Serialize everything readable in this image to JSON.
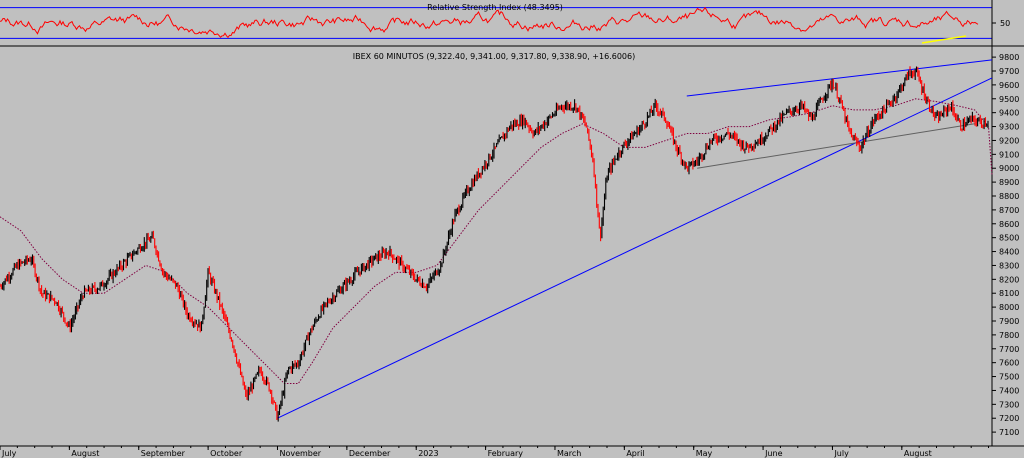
{
  "colors": {
    "background": "#c0c0c0",
    "rsi_line": "#ff0000",
    "rsi_bands": "#0000ff",
    "price_candle_up": "#000000",
    "price_candle_down": "#ff0000",
    "moving_average": "#800040",
    "trendline_primary": "#0000ff",
    "trendline_secondary": "#606060",
    "rsi_divergence": "#ffff00"
  },
  "chart_data": [
    {
      "type": "line",
      "title": "Relative Strength Index (48.3495)",
      "indicator": "RSI",
      "current_value": 48.3495,
      "ylim": [
        20,
        80
      ],
      "bands": [
        30,
        70
      ],
      "yticks": [
        50
      ],
      "ytick_labels": [
        "50"
      ]
    },
    {
      "type": "line",
      "title": "IBEX 60 MINUTOS (9,322.40, 9,341.00, 9,317.80, 9,338.90, +16.6006)",
      "instrument": "IBEX 60 MINUTOS",
      "last_bar": {
        "open": 9322.4,
        "high": 9341.0,
        "low": 9317.8,
        "close": 9338.9,
        "change": 16.6006
      },
      "ylim": [
        7000,
        9880
      ],
      "yticks": [
        7100,
        7200,
        7300,
        7400,
        7500,
        7600,
        7700,
        7800,
        7900,
        8000,
        8100,
        8200,
        8300,
        8400,
        8500,
        8600,
        8700,
        8800,
        8900,
        9000,
        9100,
        9200,
        9300,
        9400,
        9500,
        9600,
        9700,
        9800
      ],
      "ytick_labels": [
        "7100",
        "7200",
        "7300",
        "7400",
        "7500",
        "7600",
        "7700",
        "7800",
        "7900",
        "8000",
        "8100",
        "8200",
        "8300",
        "8400",
        "8500",
        "8600",
        "8700",
        "8800",
        "8900",
        "9000",
        "9100",
        "9200",
        "9300",
        "9400",
        "9500",
        "9600",
        "9700",
        "9800"
      ],
      "x_labels": [
        "July",
        "August",
        "September",
        "October",
        "November",
        "December",
        "2023",
        "February",
        "March",
        "April",
        "May",
        "June",
        "July",
        "August"
      ],
      "x_label_pos": [
        0.5,
        1.5,
        2.5,
        3.5,
        4.5,
        5.5,
        6.5,
        7.5,
        8.5,
        9.5,
        10.5,
        11.5,
        12.5,
        13.5
      ],
      "xlim": [
        0,
        14.3
      ],
      "price_path": [
        [
          0.0,
          8150
        ],
        [
          0.25,
          8300
        ],
        [
          0.45,
          8350
        ],
        [
          0.6,
          8100
        ],
        [
          0.8,
          8050
        ],
        [
          1.0,
          7850
        ],
        [
          1.2,
          8100
        ],
        [
          1.45,
          8150
        ],
        [
          1.65,
          8250
        ],
        [
          1.85,
          8350
        ],
        [
          2.05,
          8450
        ],
        [
          2.2,
          8500
        ],
        [
          2.35,
          8250
        ],
        [
          2.55,
          8150
        ],
        [
          2.7,
          7950
        ],
        [
          2.9,
          7850
        ],
        [
          3.0,
          8250
        ],
        [
          3.15,
          8050
        ],
        [
          3.35,
          7750
        ],
        [
          3.55,
          7350
        ],
        [
          3.75,
          7550
        ],
        [
          3.9,
          7400
        ],
        [
          4.0,
          7200
        ],
        [
          4.15,
          7550
        ],
        [
          4.3,
          7600
        ],
        [
          4.45,
          7800
        ],
        [
          4.6,
          7950
        ],
        [
          4.75,
          8050
        ],
        [
          4.95,
          8150
        ],
        [
          5.15,
          8250
        ],
        [
          5.4,
          8350
        ],
        [
          5.6,
          8400
        ],
        [
          5.8,
          8300
        ],
        [
          6.0,
          8200
        ],
        [
          6.15,
          8150
        ],
        [
          6.35,
          8300
        ],
        [
          6.55,
          8650
        ],
        [
          6.75,
          8850
        ],
        [
          6.95,
          9000
        ],
        [
          7.15,
          9150
        ],
        [
          7.35,
          9300
        ],
        [
          7.55,
          9350
        ],
        [
          7.7,
          9250
        ],
        [
          7.9,
          9350
        ],
        [
          8.1,
          9450
        ],
        [
          8.3,
          9450
        ],
        [
          8.45,
          9300
        ],
        [
          8.55,
          9050
        ],
        [
          8.65,
          8500
        ],
        [
          8.75,
          8950
        ],
        [
          8.9,
          9100
        ],
        [
          9.05,
          9200
        ],
        [
          9.25,
          9300
        ],
        [
          9.45,
          9450
        ],
        [
          9.6,
          9350
        ],
        [
          9.75,
          9150
        ],
        [
          9.9,
          9000
        ],
        [
          10.05,
          9050
        ],
        [
          10.25,
          9200
        ],
        [
          10.5,
          9250
        ],
        [
          10.75,
          9150
        ],
        [
          10.95,
          9200
        ],
        [
          11.15,
          9300
        ],
        [
          11.35,
          9400
        ],
        [
          11.55,
          9450
        ],
        [
          11.7,
          9350
        ],
        [
          11.85,
          9500
        ],
        [
          12.0,
          9620
        ],
        [
          12.1,
          9500
        ],
        [
          12.25,
          9250
        ],
        [
          12.4,
          9150
        ],
        [
          12.6,
          9350
        ],
        [
          12.8,
          9450
        ],
        [
          12.95,
          9550
        ],
        [
          13.1,
          9680
        ],
        [
          13.2,
          9700
        ],
        [
          13.35,
          9500
        ],
        [
          13.5,
          9350
        ],
        [
          13.7,
          9450
        ],
        [
          13.85,
          9300
        ],
        [
          14.0,
          9350
        ],
        [
          14.15,
          9330
        ],
        [
          14.25,
          9338.9
        ]
      ],
      "moving_average_path": [
        [
          0.0,
          8650
        ],
        [
          0.3,
          8550
        ],
        [
          0.6,
          8350
        ],
        [
          0.9,
          8200
        ],
        [
          1.2,
          8100
        ],
        [
          1.5,
          8100
        ],
        [
          1.8,
          8200
        ],
        [
          2.1,
          8300
        ],
        [
          2.4,
          8250
        ],
        [
          2.7,
          8100
        ],
        [
          3.0,
          8000
        ],
        [
          3.3,
          7850
        ],
        [
          3.6,
          7700
        ],
        [
          3.9,
          7550
        ],
        [
          4.1,
          7450
        ],
        [
          4.3,
          7450
        ],
        [
          4.5,
          7600
        ],
        [
          4.8,
          7850
        ],
        [
          5.1,
          8000
        ],
        [
          5.4,
          8150
        ],
        [
          5.7,
          8250
        ],
        [
          6.0,
          8250
        ],
        [
          6.3,
          8300
        ],
        [
          6.6,
          8500
        ],
        [
          6.9,
          8700
        ],
        [
          7.2,
          8850
        ],
        [
          7.5,
          9000
        ],
        [
          7.8,
          9150
        ],
        [
          8.1,
          9250
        ],
        [
          8.4,
          9320
        ],
        [
          8.7,
          9250
        ],
        [
          9.0,
          9150
        ],
        [
          9.3,
          9150
        ],
        [
          9.6,
          9200
        ],
        [
          9.9,
          9250
        ],
        [
          10.2,
          9250
        ],
        [
          10.5,
          9300
        ],
        [
          10.8,
          9300
        ],
        [
          11.1,
          9350
        ],
        [
          11.4,
          9370
        ],
        [
          11.7,
          9400
        ],
        [
          12.0,
          9450
        ],
        [
          12.3,
          9420
        ],
        [
          12.6,
          9420
        ],
        [
          12.9,
          9450
        ],
        [
          13.2,
          9500
        ],
        [
          13.5,
          9480
        ],
        [
          13.8,
          9450
        ],
        [
          14.05,
          9420
        ],
        [
          14.25,
          9300
        ],
        [
          14.3,
          8950
        ]
      ],
      "trendlines": [
        {
          "from": [
            4.0,
            7200
          ],
          "to": [
            14.3,
            9650
          ]
        },
        {
          "from": [
            9.9,
            9520
          ],
          "to": [
            14.3,
            9780
          ]
        },
        {
          "from": [
            10.05,
            9000
          ],
          "to": [
            14.05,
            9320
          ]
        }
      ]
    }
  ]
}
